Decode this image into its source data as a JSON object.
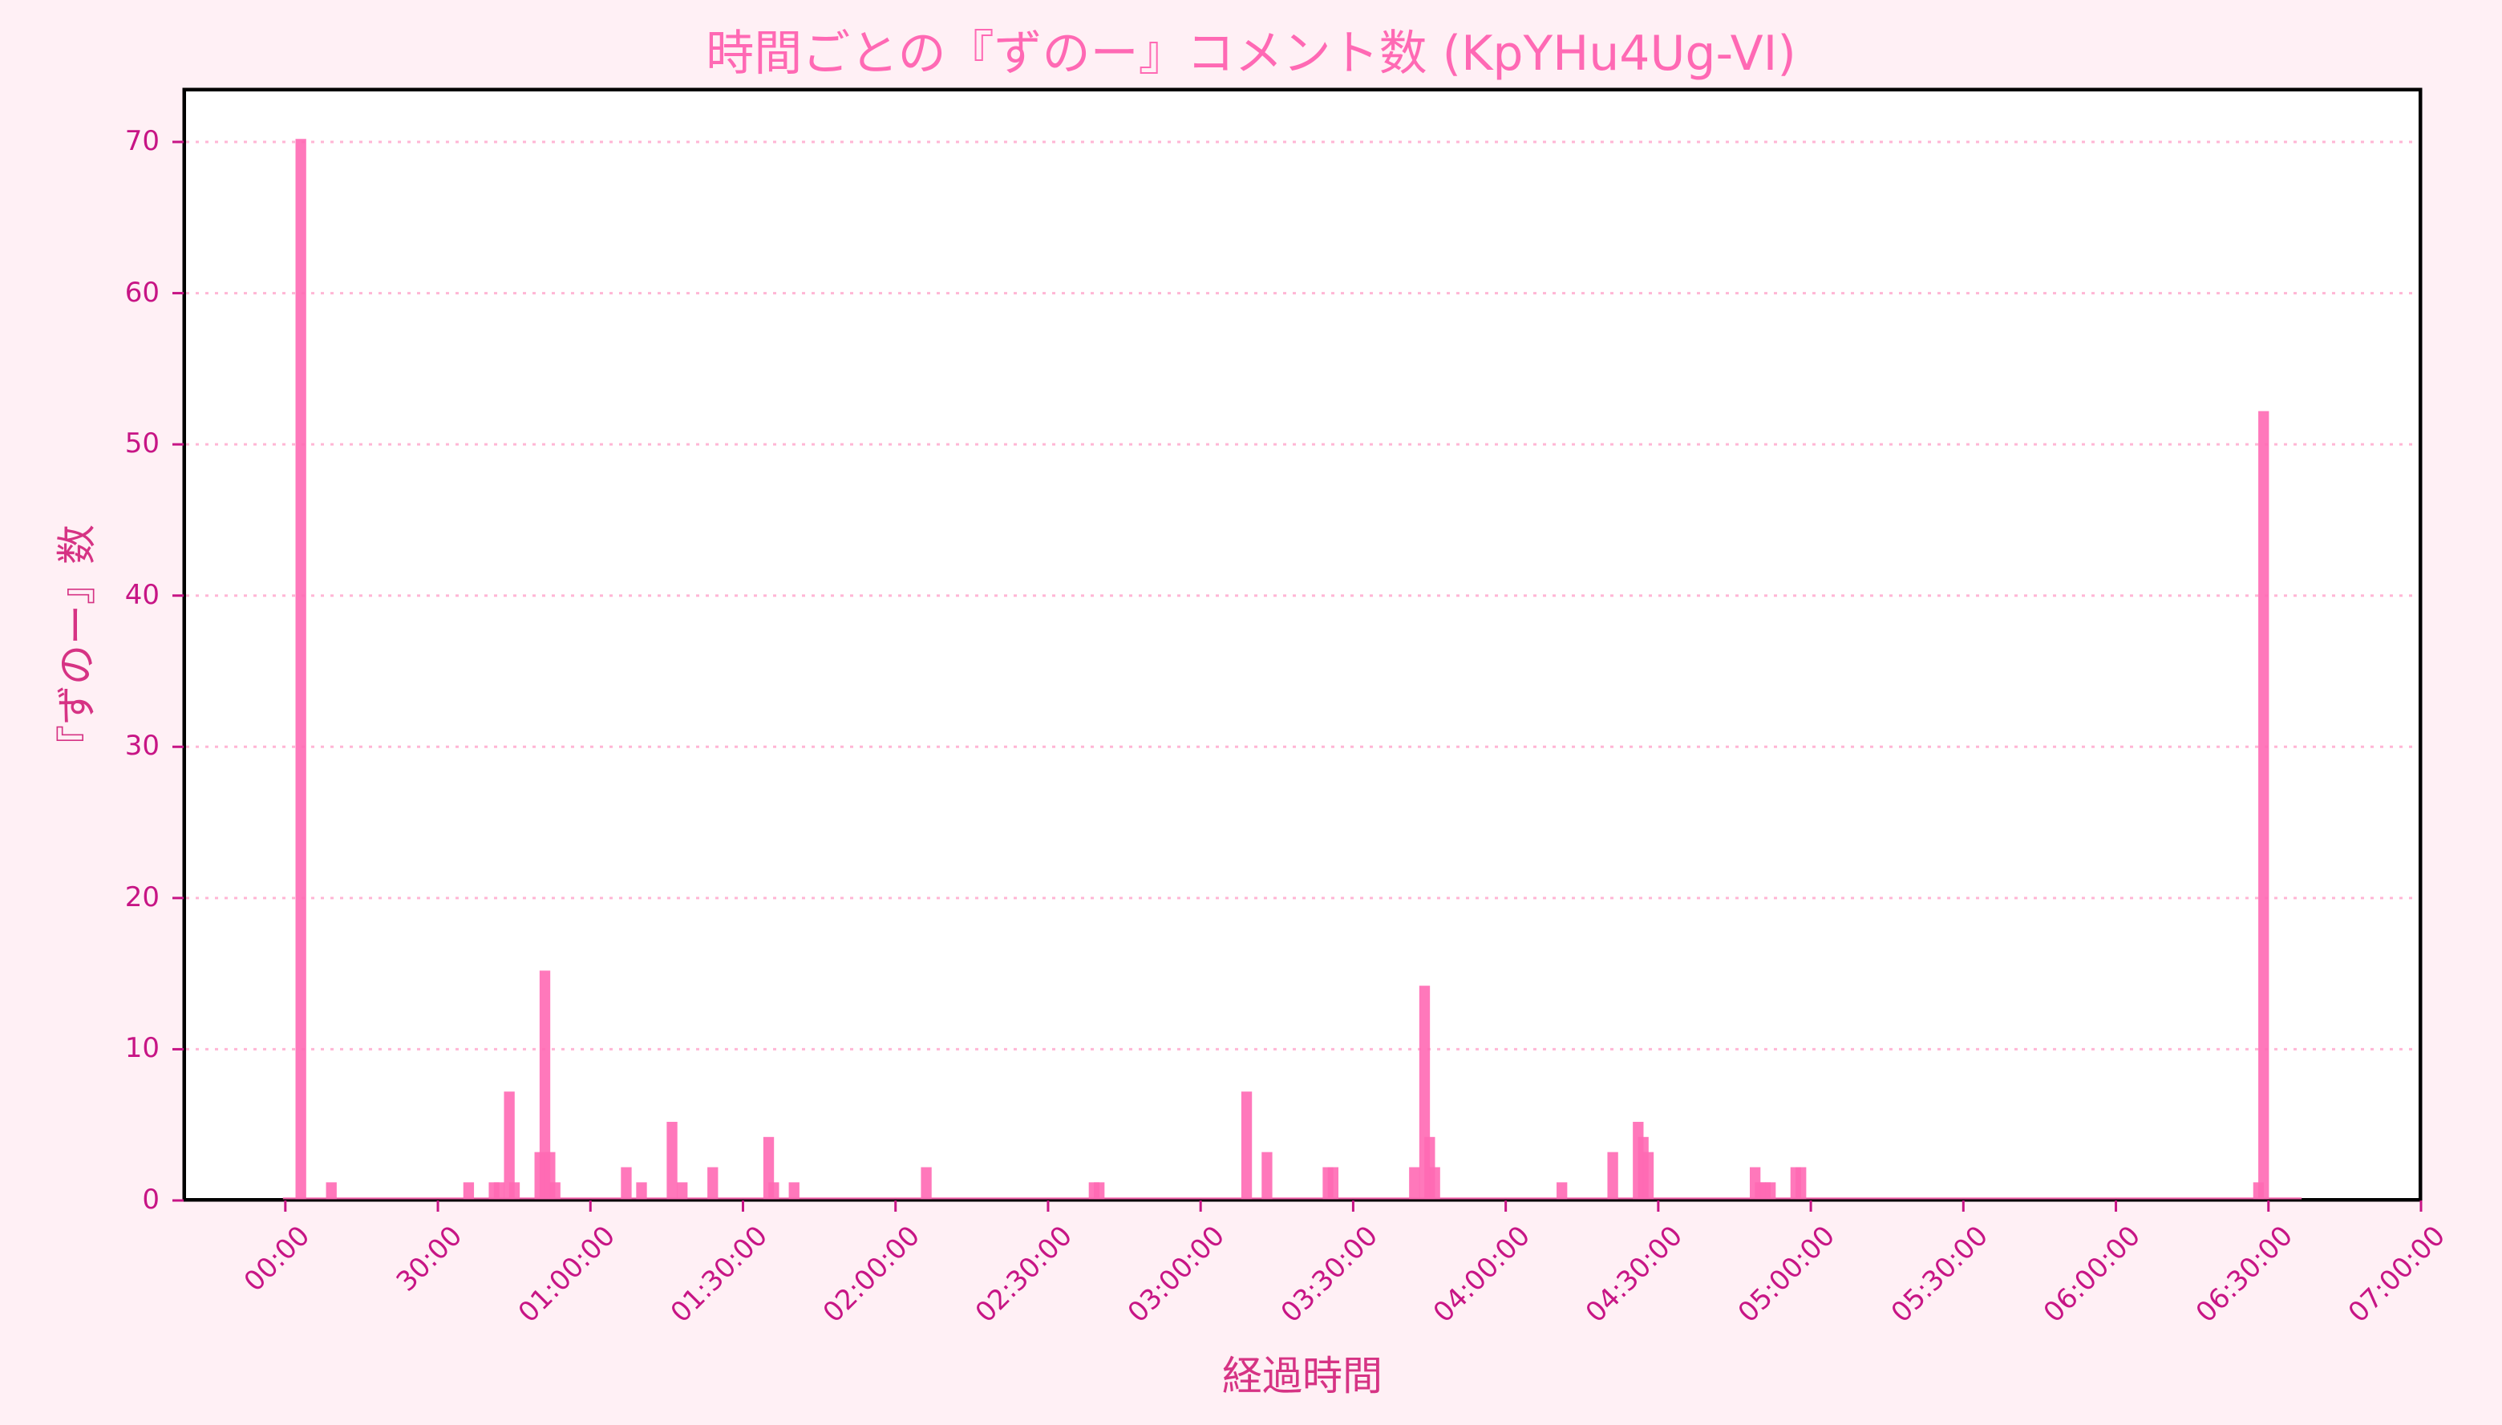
{
  "chart_data": {
    "type": "bar",
    "title": "時間ごとの『ずのー』コメント数 (KpYHu4Ug-VI)",
    "xlabel": "経過時間",
    "ylabel": "『ずのー』数",
    "bin_minutes": 1,
    "x_unit": "minutes since start",
    "xlim_minutes": [
      -20,
      420
    ],
    "ylim": [
      0,
      73.5
    ],
    "data_range_minutes": [
      0,
      397
    ],
    "xticks": [
      "00:00",
      "30:00",
      "01:00:00",
      "01:30:00",
      "02:00:00",
      "02:30:00",
      "03:00:00",
      "03:30:00",
      "04:00:00",
      "04:30:00",
      "05:00:00",
      "05:30:00",
      "06:00:00",
      "06:30:00",
      "07:00:00"
    ],
    "xtick_minutes": [
      0,
      30,
      60,
      90,
      120,
      150,
      180,
      210,
      240,
      270,
      300,
      330,
      360,
      390,
      420
    ],
    "yticks": [
      0,
      10,
      20,
      30,
      40,
      50,
      60,
      70
    ],
    "grid": "y-dotted",
    "bar_color": "#ff69b4",
    "points": [
      {
        "minute": 2,
        "value": 70
      },
      {
        "minute": 8,
        "value": 1
      },
      {
        "minute": 35,
        "value": 1
      },
      {
        "minute": 40,
        "value": 1
      },
      {
        "minute": 41,
        "value": 1
      },
      {
        "minute": 43,
        "value": 7
      },
      {
        "minute": 44,
        "value": 1
      },
      {
        "minute": 49,
        "value": 3
      },
      {
        "minute": 50,
        "value": 15
      },
      {
        "minute": 51,
        "value": 3
      },
      {
        "minute": 52,
        "value": 1
      },
      {
        "minute": 66,
        "value": 2
      },
      {
        "minute": 69,
        "value": 1
      },
      {
        "minute": 75,
        "value": 5
      },
      {
        "minute": 77,
        "value": 1
      },
      {
        "minute": 83,
        "value": 2
      },
      {
        "minute": 94,
        "value": 4
      },
      {
        "minute": 95,
        "value": 1
      },
      {
        "minute": 99,
        "value": 1
      },
      {
        "minute": 125,
        "value": 2
      },
      {
        "minute": 158,
        "value": 1
      },
      {
        "minute": 159,
        "value": 1
      },
      {
        "minute": 188,
        "value": 7
      },
      {
        "minute": 192,
        "value": 3
      },
      {
        "minute": 204,
        "value": 2
      },
      {
        "minute": 205,
        "value": 2
      },
      {
        "minute": 221,
        "value": 2
      },
      {
        "minute": 223,
        "value": 14
      },
      {
        "minute": 224,
        "value": 4
      },
      {
        "minute": 225,
        "value": 2
      },
      {
        "minute": 250,
        "value": 1
      },
      {
        "minute": 260,
        "value": 3
      },
      {
        "minute": 265,
        "value": 5
      },
      {
        "minute": 266,
        "value": 4
      },
      {
        "minute": 267,
        "value": 3
      },
      {
        "minute": 288,
        "value": 2
      },
      {
        "minute": 289,
        "value": 1
      },
      {
        "minute": 290,
        "value": 1
      },
      {
        "minute": 291,
        "value": 1
      },
      {
        "minute": 296,
        "value": 2
      },
      {
        "minute": 297,
        "value": 2
      },
      {
        "minute": 387,
        "value": 1
      },
      {
        "minute": 388,
        "value": 52
      }
    ]
  }
}
